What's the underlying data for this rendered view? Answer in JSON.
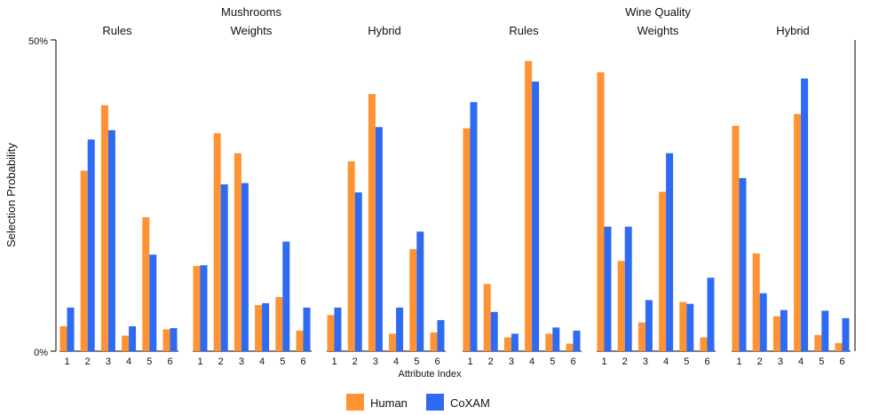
{
  "chart_data": {
    "type": "bar",
    "ylabel": "Selection Probability",
    "xlabel": "Attribute Index",
    "ylim": [
      0,
      50
    ],
    "ytick_labels": [
      "0%",
      "50%"
    ],
    "categories": [
      "1",
      "2",
      "3",
      "4",
      "5",
      "6"
    ],
    "groups": [
      {
        "title": "Mushrooms",
        "panels": [
          0,
          1,
          2
        ]
      },
      {
        "title": "Wine Quality",
        "panels": [
          3,
          4,
          5
        ]
      }
    ],
    "panels": [
      {
        "title": "Rules",
        "series": [
          {
            "name": "Human",
            "values": [
              4,
              29,
              39.5,
              2.5,
              21.5,
              3.5
            ]
          },
          {
            "name": "CoXAM",
            "values": [
              7,
              34,
              35.5,
              4,
              15.5,
              3.7
            ]
          }
        ]
      },
      {
        "title": "Weights",
        "series": [
          {
            "name": "Human",
            "values": [
              13.7,
              35,
              31.8,
              7.4,
              8.7,
              3.3
            ]
          },
          {
            "name": "CoXAM",
            "values": [
              13.8,
              26.8,
              27,
              7.7,
              17.6,
              7
            ]
          }
        ]
      },
      {
        "title": "Hybrid",
        "series": [
          {
            "name": "Human",
            "values": [
              5.8,
              30.5,
              41.3,
              2.8,
              16.4,
              3
            ]
          },
          {
            "name": "CoXAM",
            "values": [
              7,
              25.5,
              36,
              7,
              19.2,
              5
            ]
          }
        ]
      },
      {
        "title": "Rules",
        "series": [
          {
            "name": "Human",
            "values": [
              35.8,
              10.8,
              2.2,
              46.6,
              2.8,
              1.2
            ]
          },
          {
            "name": "CoXAM",
            "values": [
              40,
              6.3,
              2.8,
              43.3,
              3.8,
              3.3
            ]
          }
        ]
      },
      {
        "title": "Weights",
        "series": [
          {
            "name": "Human",
            "values": [
              44.8,
              14.5,
              4.6,
              25.6,
              7.9,
              2.2
            ]
          },
          {
            "name": "CoXAM",
            "values": [
              20,
              20,
              8.2,
              31.8,
              7.6,
              11.8
            ]
          }
        ]
      },
      {
        "title": "Hybrid",
        "series": [
          {
            "name": "Human",
            "values": [
              36.2,
              15.7,
              5.6,
              38.1,
              2.6,
              1.3
            ]
          },
          {
            "name": "CoXAM",
            "values": [
              27.8,
              9.3,
              6.6,
              43.8,
              6.5,
              5.3
            ]
          }
        ]
      }
    ],
    "legend": {
      "position": "bottom-center",
      "items": [
        {
          "name": "Human",
          "color": "#ff9232"
        },
        {
          "name": "CoXAM",
          "color": "#2f6af3"
        }
      ]
    }
  }
}
